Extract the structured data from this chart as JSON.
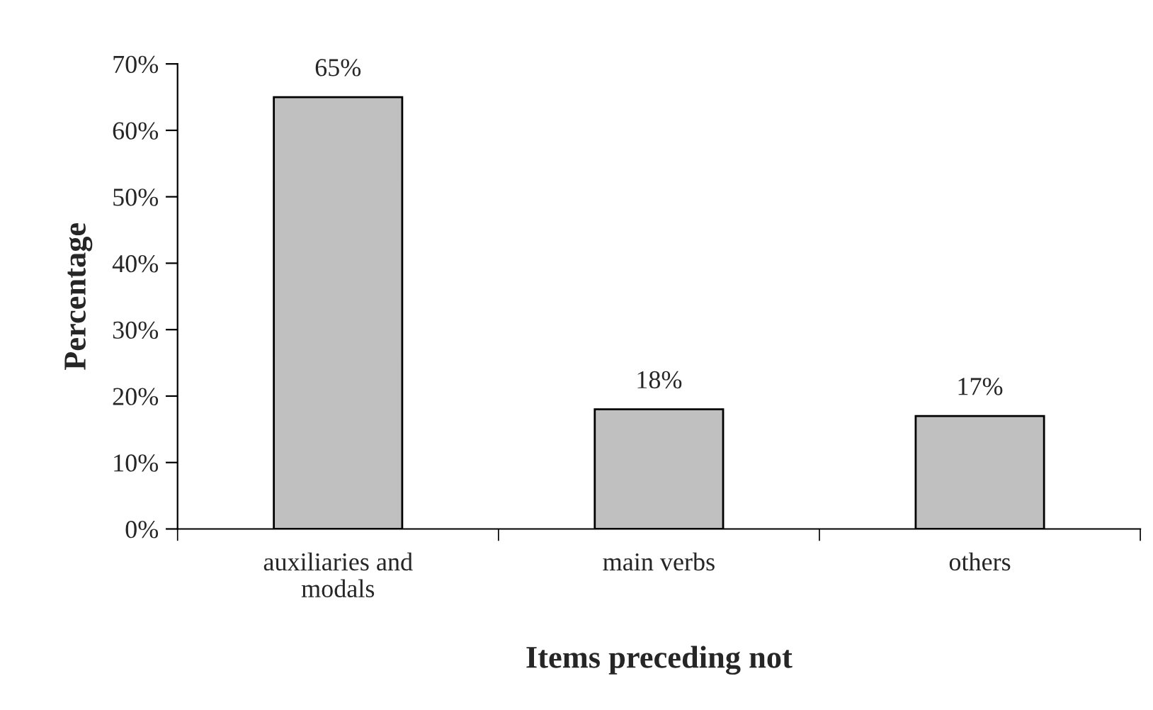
{
  "chart_data": {
    "type": "bar",
    "xlabel": "Items preceding not",
    "ylabel": "Percentage",
    "categories": [
      "auxiliaries and modals",
      "main verbs",
      "others"
    ],
    "values": [
      65,
      18,
      17
    ],
    "value_labels": [
      "65%",
      "18%",
      "17%"
    ],
    "color": "#c0c0c0",
    "ylim": [
      0,
      70
    ],
    "yticks": [
      {
        "value": 0,
        "label": "0%"
      },
      {
        "value": 10,
        "label": "10%"
      },
      {
        "value": 20,
        "label": "20%"
      },
      {
        "value": 30,
        "label": "30%"
      },
      {
        "value": 40,
        "label": "40%"
      },
      {
        "value": 50,
        "label": "50%"
      },
      {
        "value": 60,
        "label": "60%"
      },
      {
        "value": 70,
        "label": "70%"
      }
    ],
    "grid": false,
    "legend": false
  }
}
